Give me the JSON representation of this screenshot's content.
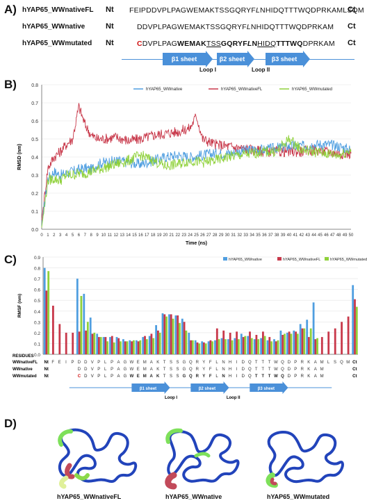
{
  "panelA": {
    "label": "A)",
    "rows": [
      {
        "name": "hYAP65_WWnativeFL",
        "nt": "Nt",
        "ct": "Ct"
      },
      {
        "name": "hYAP65_WWnative",
        "nt": "Nt",
        "ct": "Ct"
      },
      {
        "name": "hYAP65_WWmutated",
        "nt": "Nt",
        "ct": "Ct"
      }
    ],
    "seq1": "FEIPDDVPLPAGWEMAKTSSGQRYF",
    "seq1_i": "L",
    "seq1_b": "NHIDQTTTWQDPRKAMLSQM",
    "seq2": "DDVPLPAGWEMAKTSSGQRYF",
    "seq2_i": "L",
    "seq2_b": "NHIDQTTTWQDPRKAM",
    "seq3_red": "C",
    "seq3_a": "DVPLPAG",
    "seq3_b": "WEMAK",
    "seq3_c": "TSS",
    "seq3_d": "GQRYF",
    "seq3_e": "L",
    "seq3_f": "N",
    "seq3_g": "HIDQ",
    "seq3_h": "TTTWQ",
    "seq3_i": "DPRKAM",
    "sheets": [
      "β1 sheet",
      "β2 sheet",
      "β3 sheet"
    ],
    "loops": [
      "Loop I",
      "Loop II"
    ]
  },
  "panelB": {
    "label": "B)"
  },
  "panelC": {
    "label": "C)",
    "residues_label": "RESIDUES",
    "row_labels": [
      "WWnativeFL",
      "WWnative",
      "WWmutated"
    ],
    "nt": "Nt",
    "ct": "Ct",
    "residuesFL": [
      "F",
      "E",
      "I",
      "P",
      "D",
      "D",
      "V",
      "P",
      "L",
      "P",
      "A",
      "G",
      "W",
      "E",
      "M",
      "A",
      "K",
      "T",
      "S",
      "S",
      "G",
      "Q",
      "R",
      "Y",
      "F",
      "L",
      "N",
      "H",
      "I",
      "D",
      "Q",
      "T",
      "T",
      "T",
      "W",
      "Q",
      "D",
      "P",
      "R",
      "K",
      "A",
      "M",
      "L",
      "S",
      "Q",
      "M"
    ],
    "residuesNative": [
      "D",
      "D",
      "V",
      "P",
      "L",
      "P",
      "A",
      "G",
      "W",
      "E",
      "M",
      "A",
      "K",
      "T",
      "S",
      "S",
      "G",
      "Q",
      "R",
      "Y",
      "F",
      "L",
      "N",
      "H",
      "I",
      "D",
      "Q",
      "T",
      "T",
      "T",
      "W",
      "Q",
      "D",
      "P",
      "R",
      "K",
      "A",
      "M"
    ],
    "residuesMut": [
      "C",
      "D",
      "V",
      "P",
      "L",
      "P",
      "A",
      "G",
      "W",
      "E",
      "M",
      "A",
      "K",
      "T",
      "S",
      "S",
      "G",
      "Q",
      "R",
      "Y",
      "F",
      "L",
      "N",
      "H",
      "I",
      "D",
      "Q",
      "T",
      "T",
      "T",
      "W",
      "Q",
      "D",
      "P",
      "R",
      "K",
      "A",
      "M"
    ],
    "sheets": [
      "β1 sheet",
      "β2 sheet",
      "β3 sheet"
    ],
    "loops": [
      "Loop I",
      "Loop II"
    ]
  },
  "panelD": {
    "label": "D)",
    "labels": [
      "hYAP65_WWnativeFL",
      "hYAP65_WWnative",
      "hYAP65_WWmutated"
    ]
  },
  "colors": {
    "native": "#4f9ee0",
    "nativeFL": "#c8384a",
    "mutated": "#8fd13a",
    "sheet": "#4a90d9"
  },
  "chart_data": [
    {
      "type": "line",
      "title": "",
      "xlabel": "Time (ns)",
      "ylabel": "RMSD (nm)",
      "xlim": [
        0,
        50
      ],
      "ylim": [
        0,
        0.8
      ],
      "xticks": [
        0,
        1,
        2,
        3,
        4,
        5,
        6,
        7,
        8,
        9,
        10,
        11,
        12,
        13,
        14,
        15,
        16,
        17,
        18,
        19,
        20,
        21,
        22,
        23,
        24,
        25,
        26,
        27,
        28,
        29,
        30,
        31,
        32,
        33,
        34,
        35,
        36,
        37,
        38,
        39,
        40,
        41,
        42,
        43,
        44,
        45,
        46,
        47,
        48,
        49,
        50
      ],
      "yticks": [
        0,
        0.1,
        0.2,
        0.3,
        0.4,
        0.5,
        0.6,
        0.7,
        0.8
      ],
      "legend": "top",
      "series": [
        {
          "name": "hYAP65_WWnative",
          "x": [
            0,
            1,
            2,
            3,
            4,
            5,
            6,
            7,
            8,
            9,
            10,
            12,
            14,
            16,
            18,
            20,
            22,
            24,
            26,
            28,
            30,
            32,
            34,
            36,
            38,
            40,
            42,
            44,
            46,
            48,
            50
          ],
          "values": [
            0.02,
            0.28,
            0.32,
            0.3,
            0.31,
            0.32,
            0.33,
            0.34,
            0.33,
            0.36,
            0.37,
            0.38,
            0.37,
            0.36,
            0.38,
            0.4,
            0.41,
            0.4,
            0.41,
            0.42,
            0.42,
            0.43,
            0.44,
            0.44,
            0.45,
            0.46,
            0.46,
            0.47,
            0.47,
            0.46,
            0.44
          ]
        },
        {
          "name": "hYAP65_WWnativeFL",
          "x": [
            0,
            1,
            2,
            3,
            4,
            5,
            6,
            7,
            8,
            9,
            10,
            12,
            14,
            16,
            18,
            20,
            22,
            24,
            25,
            26,
            28,
            30,
            32,
            34,
            36,
            38,
            40,
            42,
            44,
            46,
            48,
            50
          ],
          "values": [
            0.05,
            0.34,
            0.4,
            0.43,
            0.47,
            0.5,
            0.68,
            0.58,
            0.52,
            0.5,
            0.5,
            0.51,
            0.49,
            0.5,
            0.52,
            0.53,
            0.54,
            0.56,
            0.63,
            0.5,
            0.47,
            0.46,
            0.45,
            0.44,
            0.43,
            0.43,
            0.43,
            0.43,
            0.44,
            0.43,
            0.42,
            0.42
          ]
        },
        {
          "name": "hYAP65_WWmutated",
          "x": [
            0,
            1,
            2,
            3,
            4,
            5,
            6,
            7,
            8,
            9,
            10,
            12,
            14,
            16,
            18,
            20,
            22,
            24,
            26,
            28,
            30,
            32,
            34,
            36,
            38,
            40,
            42,
            44,
            46,
            48,
            50
          ],
          "values": [
            0.01,
            0.27,
            0.28,
            0.27,
            0.3,
            0.3,
            0.31,
            0.31,
            0.32,
            0.33,
            0.34,
            0.36,
            0.38,
            0.41,
            0.38,
            0.35,
            0.36,
            0.38,
            0.37,
            0.38,
            0.4,
            0.41,
            0.42,
            0.43,
            0.43,
            0.5,
            0.44,
            0.43,
            0.42,
            0.41,
            0.44
          ]
        }
      ]
    },
    {
      "type": "bar",
      "title": "",
      "xlabel": "",
      "ylabel": "RMSF (nm)",
      "ylim": [
        0,
        0.9
      ],
      "yticks": [
        0,
        0.1,
        0.2,
        0.3,
        0.4,
        0.5,
        0.6,
        0.7,
        0.8,
        0.9
      ],
      "legend": "top-right",
      "categories": [
        "Nt",
        "F",
        "E",
        "I",
        "P",
        "D",
        "D",
        "V",
        "P",
        "L",
        "P",
        "A",
        "G",
        "W",
        "E",
        "M",
        "A",
        "K",
        "T",
        "S",
        "S",
        "G",
        "Q",
        "R",
        "Y",
        "F",
        "L",
        "N",
        "H",
        "I",
        "D",
        "Q",
        "T",
        "T",
        "T",
        "W",
        "Q",
        "D",
        "P",
        "R",
        "K",
        "A",
        "M",
        "L",
        "S",
        "Q",
        "M",
        "Ct"
      ],
      "series": [
        {
          "name": "hYAP65_WWnative",
          "values": [
            0.8,
            null,
            null,
            null,
            null,
            0.7,
            0.56,
            0.34,
            0.19,
            0.16,
            0.16,
            0.16,
            0.14,
            0.13,
            0.13,
            0.16,
            0.17,
            0.27,
            0.38,
            0.37,
            0.36,
            0.33,
            0.2,
            0.13,
            0.12,
            0.12,
            0.13,
            0.15,
            0.14,
            0.15,
            0.19,
            0.17,
            0.14,
            0.15,
            0.13,
            0.14,
            0.22,
            0.2,
            0.22,
            0.28,
            0.32,
            0.48,
            null,
            null,
            null,
            null,
            null,
            0.64
          ]
        },
        {
          "name": "hYAP65_WWnativeFL",
          "values": [
            0.59,
            0.45,
            0.28,
            0.2,
            0.2,
            0.21,
            0.22,
            0.19,
            0.16,
            0.16,
            0.17,
            0.15,
            0.12,
            0.12,
            0.12,
            0.17,
            0.19,
            0.22,
            0.37,
            0.37,
            0.36,
            0.3,
            0.13,
            0.11,
            0.11,
            0.13,
            0.24,
            0.22,
            0.2,
            0.21,
            0.16,
            0.21,
            0.18,
            0.21,
            0.16,
            0.12,
            0.18,
            0.21,
            0.21,
            0.24,
            0.16,
            0.14,
            0.16,
            0.21,
            0.24,
            0.3,
            0.35,
            0.51
          ]
        },
        {
          "name": "hYAP65_WWmutated",
          "values": [
            0.77,
            null,
            null,
            null,
            null,
            0.54,
            0.3,
            0.2,
            0.16,
            0.12,
            0.11,
            0.12,
            0.12,
            0.13,
            0.13,
            0.14,
            0.15,
            0.2,
            0.35,
            0.33,
            0.29,
            0.22,
            0.13,
            0.1,
            0.1,
            0.12,
            0.14,
            0.14,
            0.13,
            0.14,
            0.17,
            0.15,
            0.14,
            0.17,
            0.12,
            0.13,
            0.19,
            0.19,
            0.19,
            0.24,
            0.24,
            0.15,
            null,
            null,
            null,
            null,
            null,
            0.44
          ]
        }
      ]
    }
  ]
}
